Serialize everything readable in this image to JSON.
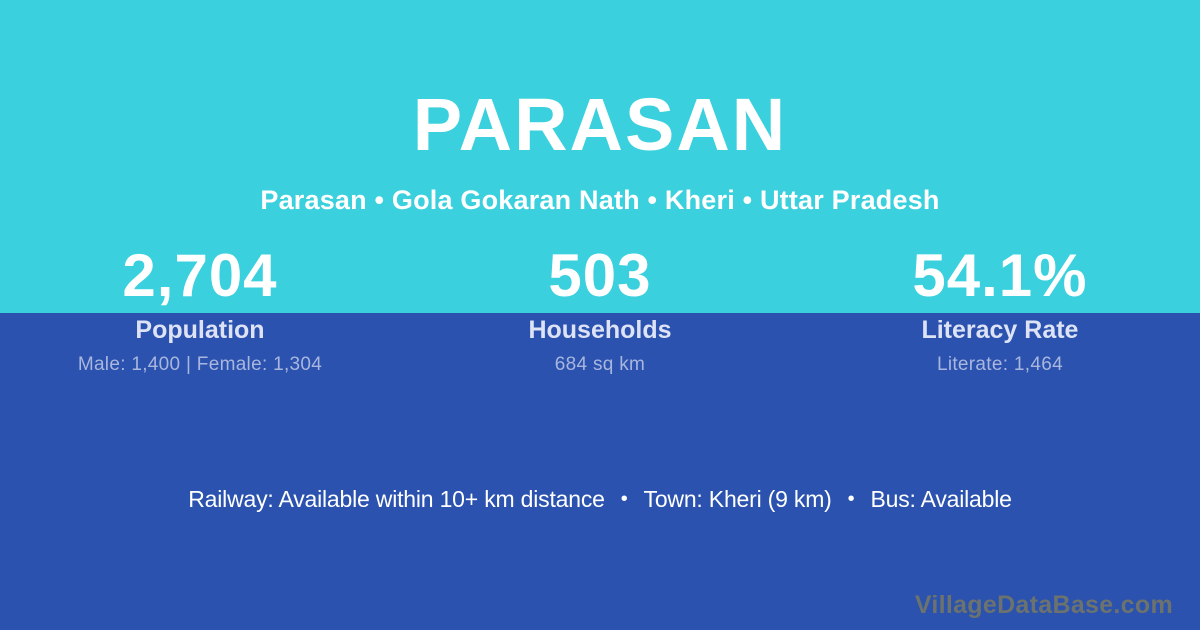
{
  "header": {
    "title": "PARASAN",
    "subtitle": "Parasan • Gola Gokaran Nath • Kheri • Uttar Pradesh"
  },
  "stats": [
    {
      "value": "2,704",
      "label": "Population",
      "detail": "Male: 1,400 | Female: 1,304"
    },
    {
      "value": "503",
      "label": "Households",
      "detail": "684 sq km"
    },
    {
      "value": "54.1%",
      "label": "Literacy Rate",
      "detail": "Literate: 1,464"
    }
  ],
  "facts": {
    "separator": "•",
    "items": [
      "Railway: Available within 10+ km distance",
      "Town: Kheri (9 km)",
      "Bus: Available"
    ]
  },
  "watermark": "VillageDataBase.com",
  "colors": {
    "top_background": "#3ad0dd",
    "bottom_background": "#2a52ae",
    "text_primary": "#ffffff",
    "stat_label": "#dde3f5",
    "stat_detail": "#a9b6de",
    "watermark_text": "#6c726e"
  }
}
